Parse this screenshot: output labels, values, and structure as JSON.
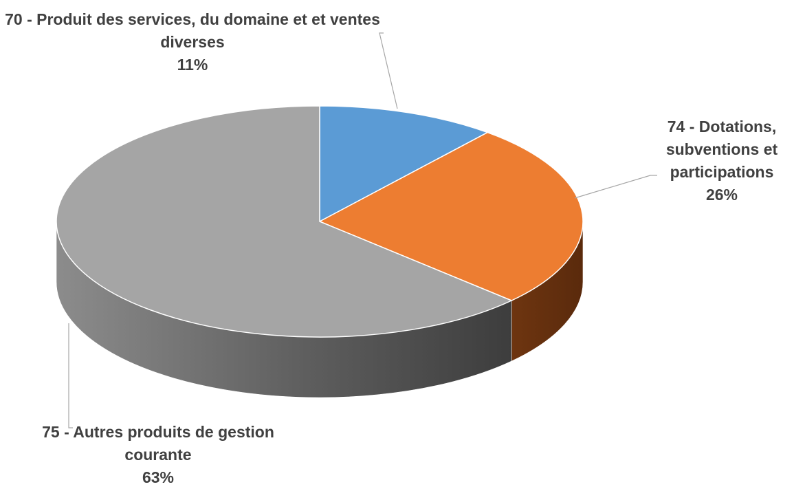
{
  "chart_data": {
    "type": "pie",
    "categories": [
      "70 - Produit des services, du domaine et et ventes diverses",
      "74 - Dotations, subventions et participations",
      "75 - Autres produits de gestion courante"
    ],
    "values": [
      11,
      26,
      63
    ],
    "value_labels": [
      "11%",
      "26%",
      "63%"
    ],
    "colors": [
      "#5b9bd5",
      "#ed7d31",
      "#a5a5a5"
    ]
  }
}
